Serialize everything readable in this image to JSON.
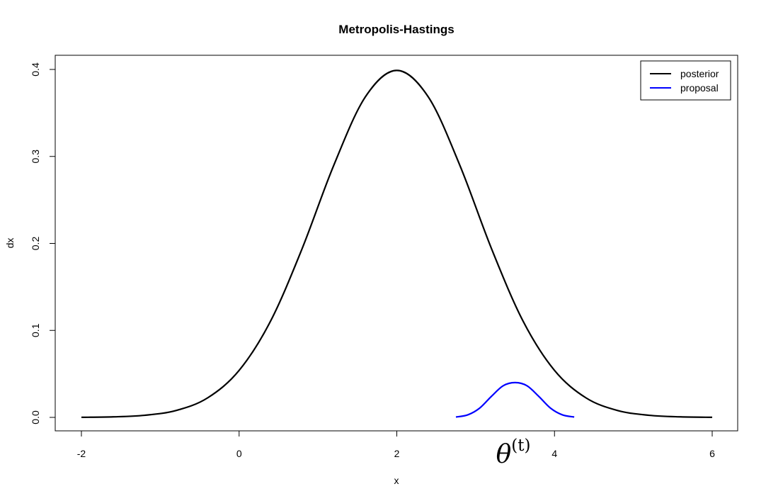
{
  "chart_data": {
    "type": "line",
    "title": "Metropolis-Hastings",
    "xlabel": "x",
    "ylabel": "dx",
    "xlim": [
      -2,
      6
    ],
    "ylim": [
      0,
      0.4
    ],
    "x_ticks": [
      "-2",
      "0",
      "2",
      "4",
      "6"
    ],
    "y_ticks": [
      "0.0",
      "0.1",
      "0.2",
      "0.3",
      "0.4"
    ],
    "grid": false,
    "legend_position": "top-right",
    "annotation": {
      "text_main": "θ",
      "text_sup": "(t)",
      "x": 3.5
    },
    "series": [
      {
        "name": "posterior",
        "color": "#000000",
        "x": [
          -2,
          -1.6,
          -1.2,
          -0.8,
          -0.4,
          0,
          0.4,
          0.8,
          1.2,
          1.6,
          2,
          2.4,
          2.8,
          3.2,
          3.6,
          4,
          4.4,
          4.8,
          5.2,
          5.6,
          6
        ],
        "values": [
          0.0001,
          0.0006,
          0.0024,
          0.0079,
          0.0224,
          0.054,
          0.1109,
          0.1942,
          0.2897,
          0.3683,
          0.3989,
          0.3683,
          0.2897,
          0.1942,
          0.1109,
          0.054,
          0.0224,
          0.0079,
          0.0024,
          0.0006,
          0.0001
        ]
      },
      {
        "name": "proposal",
        "color": "#0000ff",
        "x": [
          2.75,
          2.9,
          3.05,
          3.2,
          3.35,
          3.5,
          3.65,
          3.8,
          3.95,
          4.1,
          4.25
        ],
        "values": [
          0.0004,
          0.0029,
          0.0106,
          0.0242,
          0.0364,
          0.04,
          0.0364,
          0.0242,
          0.0106,
          0.0029,
          0.0004
        ]
      }
    ]
  }
}
